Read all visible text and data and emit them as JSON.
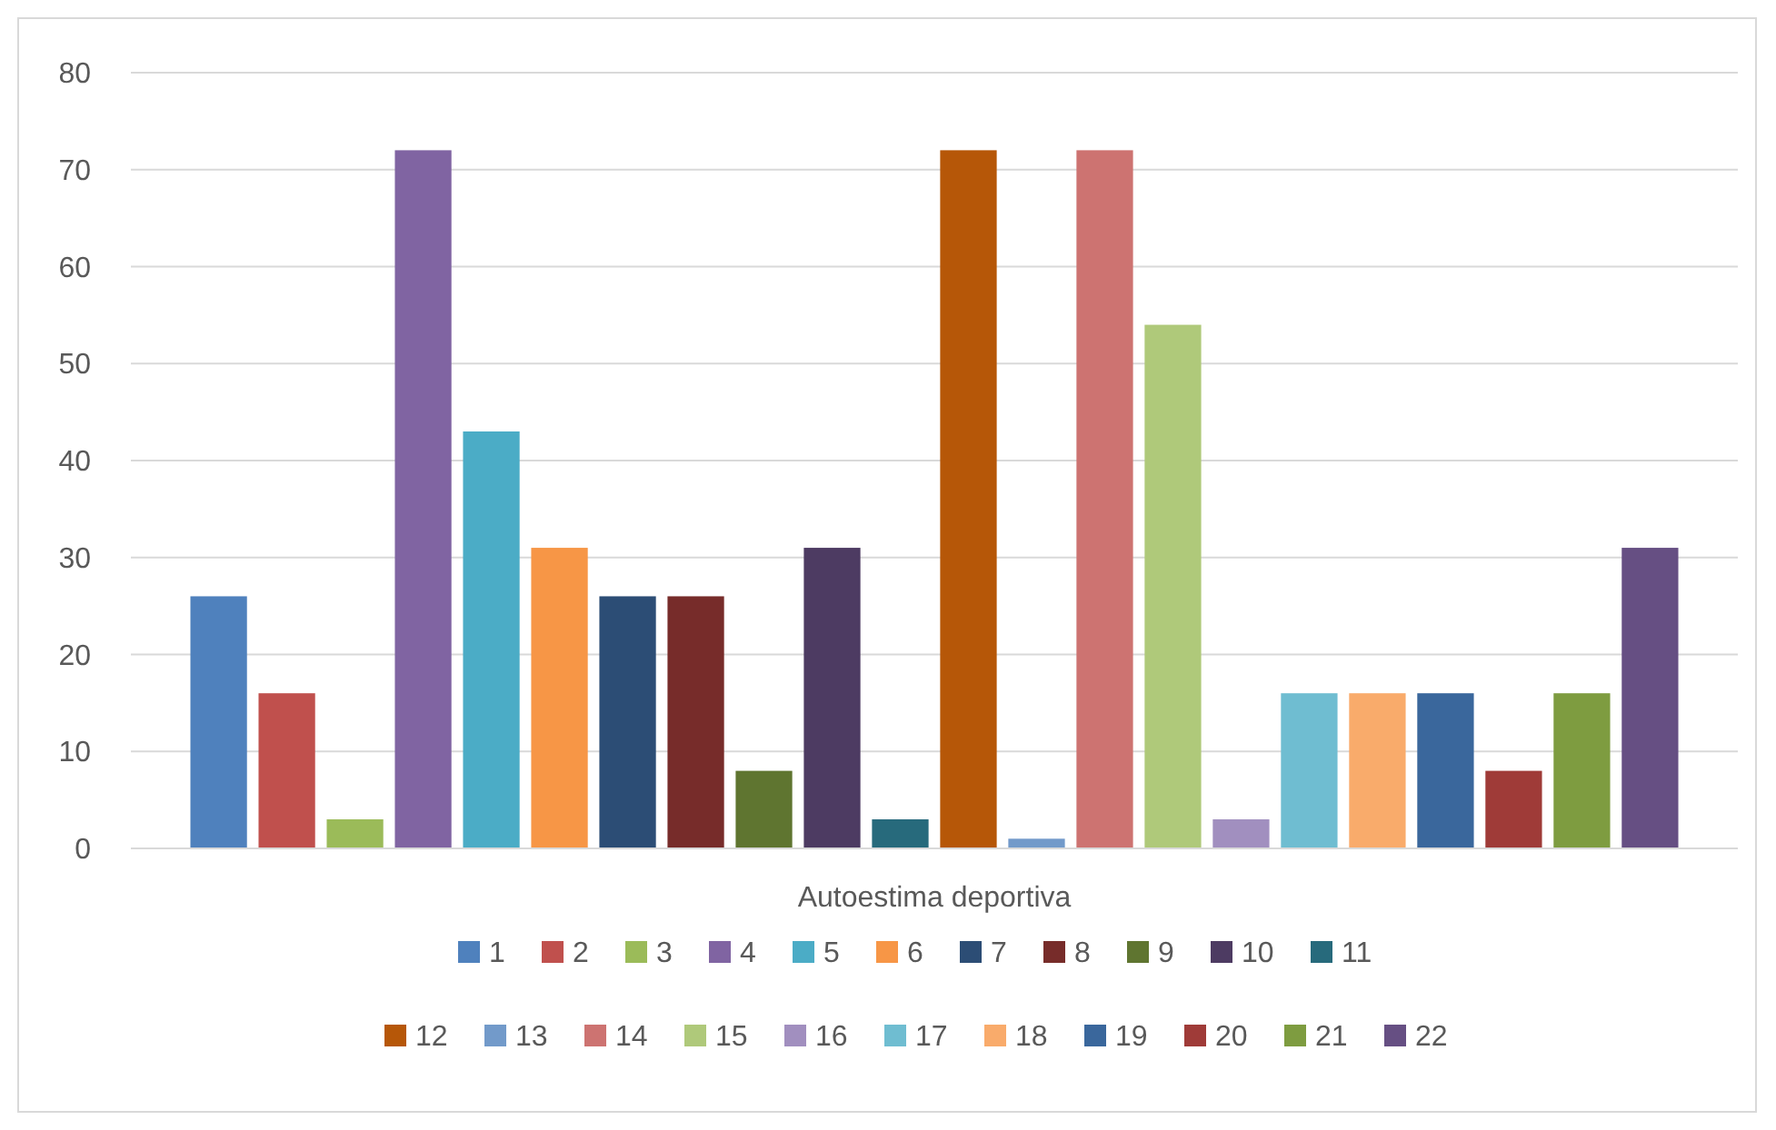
{
  "chart_data": {
    "type": "bar",
    "categories": [
      "Autoestima deportiva"
    ],
    "ylim": [
      0,
      80
    ],
    "yticks": [
      0,
      10,
      20,
      30,
      40,
      50,
      60,
      70,
      80
    ],
    "grid": "y",
    "legend": "bottom",
    "series": [
      {
        "name": "1",
        "color": "#4f81bd",
        "values": [
          26
        ]
      },
      {
        "name": "2",
        "color": "#c0504d",
        "values": [
          16
        ]
      },
      {
        "name": "3",
        "color": "#9bbb59",
        "values": [
          3
        ]
      },
      {
        "name": "4",
        "color": "#8064a2",
        "values": [
          72
        ]
      },
      {
        "name": "5",
        "color": "#4bacc6",
        "values": [
          43
        ]
      },
      {
        "name": "6",
        "color": "#f79646",
        "values": [
          31
        ]
      },
      {
        "name": "7",
        "color": "#2c4d75",
        "values": [
          26
        ]
      },
      {
        "name": "8",
        "color": "#772c2a",
        "values": [
          26
        ]
      },
      {
        "name": "9",
        "color": "#5f7530",
        "values": [
          8
        ]
      },
      {
        "name": "10",
        "color": "#4d3b62",
        "values": [
          31
        ]
      },
      {
        "name": "11",
        "color": "#276a7c",
        "values": [
          3
        ]
      },
      {
        "name": "12",
        "color": "#b65708",
        "values": [
          72
        ]
      },
      {
        "name": "13",
        "color": "#729aca",
        "values": [
          1
        ]
      },
      {
        "name": "14",
        "color": "#cd7371",
        "values": [
          72
        ]
      },
      {
        "name": "15",
        "color": "#afc97a",
        "values": [
          54
        ]
      },
      {
        "name": "16",
        "color": "#a18fbf",
        "values": [
          3
        ]
      },
      {
        "name": "17",
        "color": "#6fbdd1",
        "values": [
          16
        ]
      },
      {
        "name": "18",
        "color": "#f9ab6b",
        "values": [
          16
        ]
      },
      {
        "name": "19",
        "color": "#3a679c",
        "values": [
          16
        ]
      },
      {
        "name": "20",
        "color": "#9f3b38",
        "values": [
          8
        ]
      },
      {
        "name": "21",
        "color": "#7e9c40",
        "values": [
          16
        ]
      },
      {
        "name": "22",
        "color": "#664f83",
        "values": [
          31
        ]
      }
    ]
  }
}
